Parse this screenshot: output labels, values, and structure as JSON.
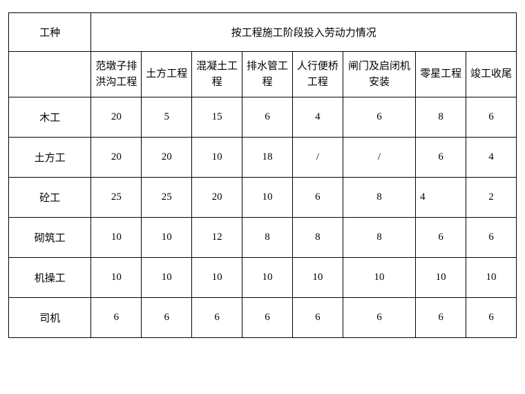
{
  "header": {
    "work_type_label": "工种",
    "phases_label": "按工程施工阶段投入劳动力情况"
  },
  "phase_columns": [
    "范墩子排洪沟工程",
    "土方工程",
    "混凝土工程",
    "排水管工程",
    "人行便桥工程",
    "闸门及启闭机安装",
    "零星工程",
    "竣工收尾"
  ],
  "rows": [
    {
      "name": "木工",
      "values": [
        "20",
        "5",
        "15",
        "6",
        "4",
        "6",
        "8",
        "6"
      ],
      "left_align_cols": []
    },
    {
      "name": "土方工",
      "values": [
        "20",
        "20",
        "10",
        "18",
        "/",
        "/",
        "6",
        "4"
      ],
      "left_align_cols": []
    },
    {
      "name": "砼工",
      "values": [
        "25",
        "25",
        "20",
        "10",
        "6",
        "8",
        "4",
        "2"
      ],
      "left_align_cols": [
        6
      ]
    },
    {
      "name": "砌筑工",
      "values": [
        "10",
        "10",
        "12",
        "8",
        "8",
        "8",
        "6",
        "6"
      ],
      "left_align_cols": []
    },
    {
      "name": "机操工",
      "values": [
        "10",
        "10",
        "10",
        "10",
        "10",
        "10",
        "10",
        "10"
      ],
      "left_align_cols": []
    },
    {
      "name": "司机",
      "values": [
        "6",
        "6",
        "6",
        "6",
        "6",
        "6",
        "6",
        "6"
      ],
      "left_align_cols": []
    }
  ],
  "styling": {
    "border_color": "#000000",
    "background_color": "#ffffff",
    "font_family": "SimSun",
    "base_font_size": 15,
    "text_color": "#000000"
  }
}
